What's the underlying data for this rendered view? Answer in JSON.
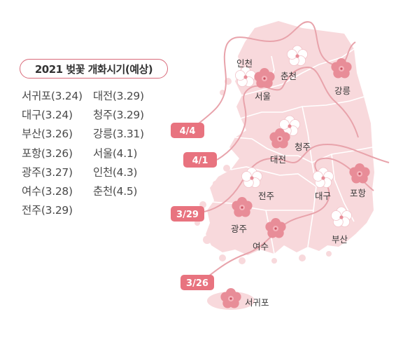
{
  "title": "2021 벚꽃 개화시기(예상)",
  "forecast": [
    "서귀포(3.24)",
    "대전(3.29)",
    "대구(3.24)",
    "청주(3.29)",
    "부산(3.26)",
    "강릉(3.31)",
    "포항(3.26)",
    "서울(4.1)",
    "광주(3.27)",
    "인천(4.3)",
    "여수(3.28)",
    "춘천(4.5)",
    "전주(3.29)"
  ],
  "isoline_labels": [
    "4/4",
    "4/1",
    "3/29",
    "3/26"
  ],
  "cities": {
    "incheon": "인천",
    "chuncheon": "춘천",
    "seoul": "서울",
    "gangneung": "강릉",
    "cheongju": "청주",
    "daejeon": "대전",
    "jeonju": "전주",
    "daegu": "대구",
    "pohang": "포항",
    "gwangju": "광주",
    "busan": "부산",
    "yeosu": "여수",
    "seogwipo": "서귀포"
  },
  "colors": {
    "land": "#f8d9dc",
    "border": "#ffffff",
    "isoline": "#e8a3ab",
    "badge": "#e8737f",
    "flower_pink": "#e88d98",
    "flower_white": "#ffffff"
  }
}
